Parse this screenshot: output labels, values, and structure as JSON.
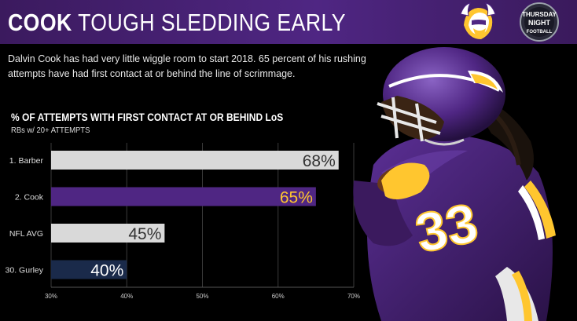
{
  "header": {
    "headline_strong": "COOK",
    "headline_rest": "TOUGH SLEDDING EARLY",
    "tnf_logo_lines": [
      "THURSDAY",
      "NIGHT",
      "FOOTBALL"
    ]
  },
  "subtitle": "Dalvin Cook has had very little wiggle room to start 2018. 65 percent of his rushing attempts have had first contact at or behind the line of scrimmage.",
  "chart_title": "% OF ATTEMPTS WITH FIRST CONTACT AT OR BEHIND LoS",
  "chart_subtitle": "RBs w/ 20+ ATTEMPTS",
  "colors": {
    "header_purple": "#4f2683",
    "bar_gray": "#d9d9d9",
    "bar_purple": "#4f2683",
    "bar_navy": "#1a2a4a",
    "gold": "#ffc62f"
  },
  "icons": [
    "vikings-logo-icon",
    "thursday-night-football-logo-icon",
    "player-photo"
  ],
  "chart_data": {
    "type": "bar",
    "orientation": "horizontal",
    "categories": [
      "1. Barber",
      "2. Cook",
      "NFL AVG",
      "30. Gurley"
    ],
    "values": [
      68,
      65,
      45,
      40
    ],
    "value_labels": [
      "68%",
      "65%",
      "45%",
      "40%"
    ],
    "bar_colors": [
      "#d9d9d9",
      "#4f2683",
      "#d9d9d9",
      "#1a2a4a"
    ],
    "label_colors": [
      "#333333",
      "#ffc62f",
      "#333333",
      "#ffffff"
    ],
    "x_ticks": [
      30,
      40,
      50,
      60,
      70
    ],
    "x_tick_labels": [
      "30%",
      "40%",
      "50%",
      "60%",
      "70%"
    ],
    "xlim": [
      30,
      70
    ],
    "grid": true,
    "title": "% OF ATTEMPTS WITH FIRST CONTACT AT OR BEHIND LoS",
    "subtitle": "RBs w/ 20+ ATTEMPTS"
  }
}
